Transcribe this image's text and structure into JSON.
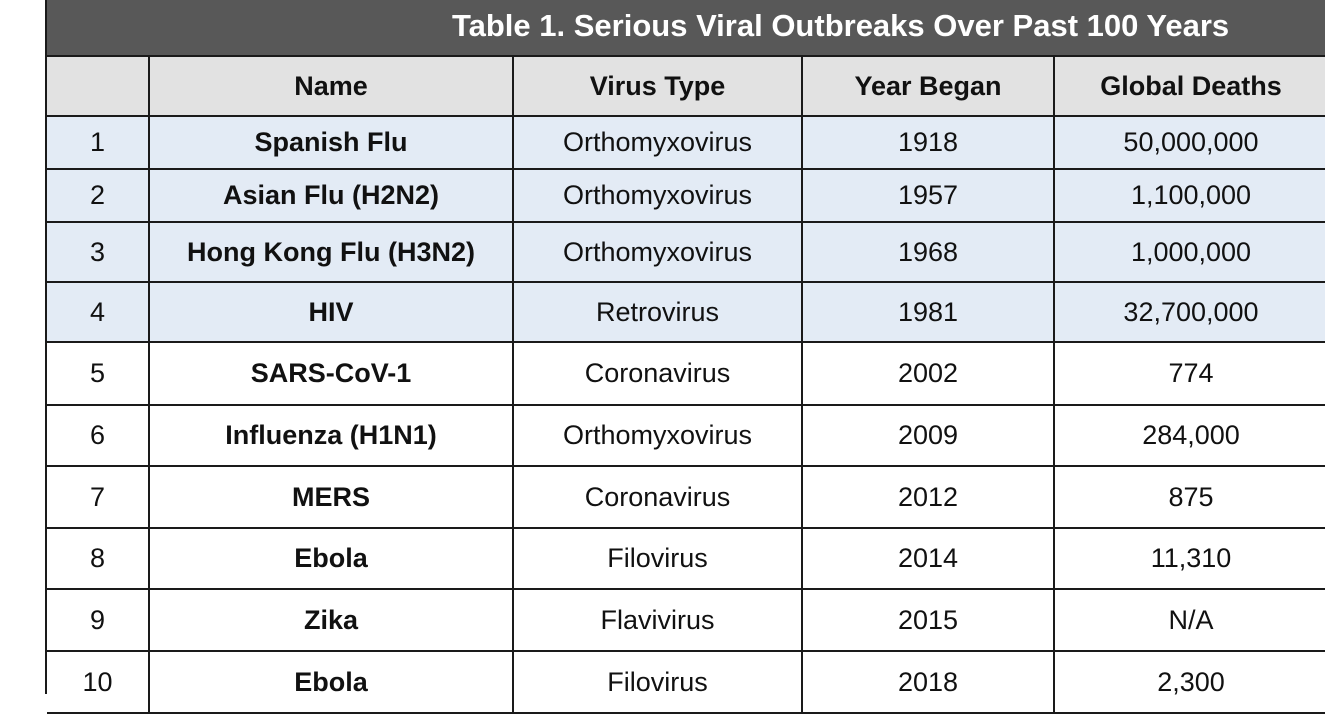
{
  "chart_data": {
    "type": "table",
    "title": "Table 1. Serious Viral Outbreaks Over Past 100 Years",
    "columns": [
      "",
      "Name",
      "Virus Type",
      "Year Began",
      "Global Deaths"
    ],
    "rows": [
      {
        "index": "1",
        "name": "Spanish Flu",
        "virus_type": "Orthomyxovirus",
        "year": "1918",
        "deaths": "50,000,000"
      },
      {
        "index": "2",
        "name": "Asian Flu (H2N2)",
        "virus_type": "Orthomyxovirus",
        "year": "1957",
        "deaths": "1,100,000"
      },
      {
        "index": "3",
        "name": "Hong Kong Flu (H3N2)",
        "virus_type": "Orthomyxovirus",
        "year": "1968",
        "deaths": "1,000,000"
      },
      {
        "index": "4",
        "name": "HIV",
        "virus_type": "Retrovirus",
        "year": "1981",
        "deaths": "32,700,000"
      },
      {
        "index": "5",
        "name": "SARS-CoV-1",
        "virus_type": "Coronavirus",
        "year": "2002",
        "deaths": "774"
      },
      {
        "index": "6",
        "name": "Influenza (H1N1)",
        "virus_type": "Orthomyxovirus",
        "year": "2009",
        "deaths": "284,000"
      },
      {
        "index": "7",
        "name": "MERS",
        "virus_type": "Coronavirus",
        "year": "2012",
        "deaths": "875"
      },
      {
        "index": "8",
        "name": "Ebola",
        "virus_type": "Filovirus",
        "year": "2014",
        "deaths": "11,310"
      },
      {
        "index": "9",
        "name": "Zika",
        "virus_type": "Flavivirus",
        "year": "2015",
        "deaths": "N/A"
      },
      {
        "index": "10",
        "name": "Ebola",
        "virus_type": "Filovirus",
        "year": "2018",
        "deaths": "2,300"
      }
    ]
  },
  "colors": {
    "title_bar": "#585858",
    "header_row": "#e2e2e2",
    "highlight_rows": "#e3ebf5",
    "border": "#1a1a1a"
  }
}
